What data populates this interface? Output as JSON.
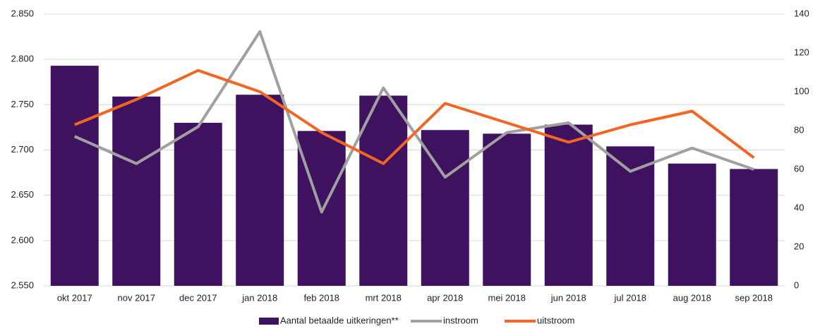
{
  "chart_data": {
    "type": "bar",
    "categories": [
      "okt 2017",
      "nov 2017",
      "dec 2017",
      "jan 2018",
      "feb 2018",
      "mrt 2018",
      "apr 2018",
      "mei 2018",
      "jun 2018",
      "jul 2018",
      "aug 2018",
      "sep 2018"
    ],
    "series": [
      {
        "name": "Aantal betaalde uitkeringen**",
        "type": "bar",
        "color": "#3f1260",
        "values": [
          2793,
          2759,
          2730,
          2761,
          2721,
          2760,
          2722,
          2718,
          2728,
          2704,
          2685,
          2679
        ]
      },
      {
        "name": "instroom",
        "type": "line",
        "axis": "y2",
        "color": "#a0a0a0",
        "values": [
          77,
          63,
          82,
          131,
          38,
          102,
          56,
          79,
          84,
          59,
          71,
          60
        ]
      },
      {
        "name": "uitstroom",
        "type": "line",
        "axis": "y2",
        "color": "#f26522",
        "values": [
          83,
          96,
          111,
          100,
          79,
          63,
          94,
          84,
          74,
          83,
          90,
          66
        ]
      }
    ],
    "ylim": [
      2550,
      2850
    ],
    "yticks": [
      {
        "value": 2550,
        "label": "2.550"
      },
      {
        "value": 2600,
        "label": "2.600"
      },
      {
        "value": 2650,
        "label": "2.650"
      },
      {
        "value": 2700,
        "label": "2.700"
      },
      {
        "value": 2750,
        "label": "2.750"
      },
      {
        "value": 2800,
        "label": "2.800"
      },
      {
        "value": 2850,
        "label": "2.850"
      }
    ],
    "y2lim": [
      0,
      140
    ],
    "y2ticks": [
      0,
      20,
      40,
      60,
      80,
      100,
      120,
      140
    ],
    "grid": true,
    "legend": "bottom"
  }
}
